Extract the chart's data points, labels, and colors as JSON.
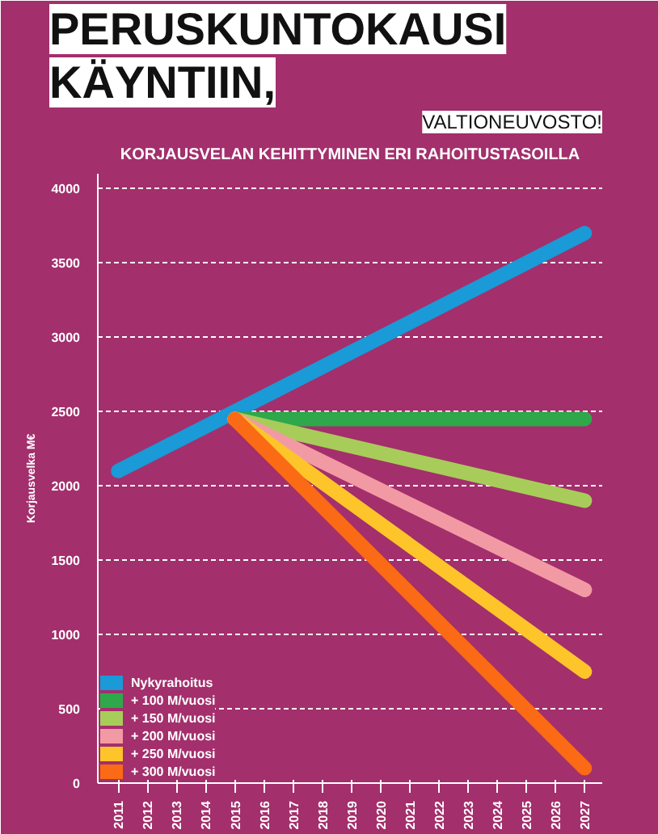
{
  "chart_data": {
    "type": "line",
    "title": "KORJAUSVELAN KEHITTYMINEN ERI RAHOITUSTASOILLA",
    "annotations": [
      "PERUSKUNTOKAUSI",
      "KÄYNTIIN,",
      "VALTIONEUVOSTO!"
    ],
    "ylabel": "Korjausvelka M€",
    "xlim": [
      2010.3,
      2027.6
    ],
    "xticks": [
      2011,
      2012,
      2013,
      2014,
      2015,
      2016,
      2017,
      2018,
      2019,
      2020,
      2021,
      2022,
      2023,
      2024,
      2025,
      2026,
      2027
    ],
    "ylim": [
      0,
      4100
    ],
    "yticks": [
      0,
      500,
      1000,
      1500,
      2000,
      2500,
      3000,
      3500,
      4000
    ],
    "grid": "y",
    "legend": "bottom left",
    "line_style": "solid",
    "marker": "none",
    "series": [
      {
        "name": "Nykyrahoitus",
        "color": "#1a9ad6",
        "x": [
          2011,
          2027
        ],
        "values": [
          2100,
          3700
        ]
      },
      {
        "name": "+ 100 M/vuosi",
        "color": "#2ea84a",
        "x": [
          2015,
          2027
        ],
        "values": [
          2450,
          2450
        ]
      },
      {
        "name": "+ 150 M/vuosi",
        "color": "#a8cc5a",
        "x": [
          2015,
          2027
        ],
        "values": [
          2450,
          1900
        ]
      },
      {
        "name": "+ 200 M/vuosi",
        "color": "#f29aa4",
        "x": [
          2015,
          2027
        ],
        "values": [
          2450,
          1300
        ]
      },
      {
        "name": "+ 250 M/vuosi",
        "color": "#fdc52a",
        "x": [
          2015,
          2027
        ],
        "values": [
          2450,
          750
        ]
      },
      {
        "name": "+ 300 M/vuosi",
        "color": "#fb6a14",
        "x": [
          2015,
          2027
        ],
        "values": [
          2450,
          100
        ]
      }
    ]
  }
}
